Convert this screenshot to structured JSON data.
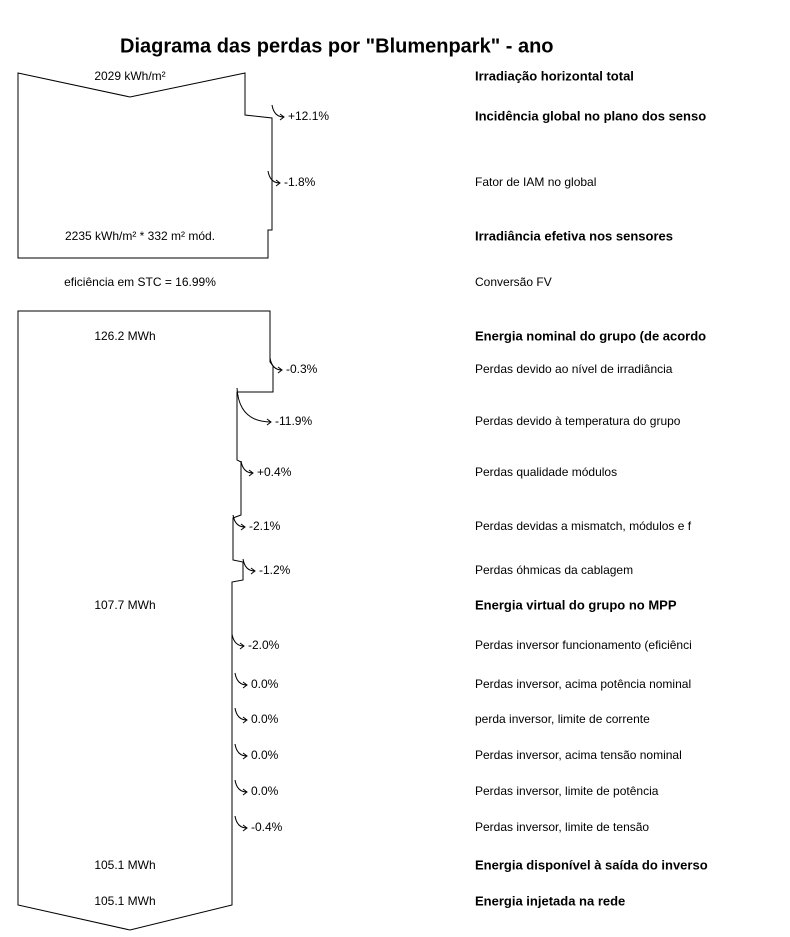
{
  "title": "Diagrama das perdas por \"Blumenpark\"  -  ano",
  "rows": [
    {
      "left": "2029 kWh/m²",
      "label": "Irradiação horizontal total"
    },
    {
      "loss": "+12.1%",
      "label": "Incidência global no plano dos senso"
    },
    {
      "loss": "-1.8%",
      "label": "Fator de IAM no global"
    },
    {
      "left": "2235 kWh/m² * 332 m² mód.",
      "label": "Irradiância efetiva nos sensores"
    },
    {
      "left": "eficiência em STC = 16.99%",
      "label": "Conversão FV"
    },
    {
      "left": "126.2 MWh",
      "label": "Energia nominal do grupo (de acordo"
    },
    {
      "loss": "-0.3%",
      "label": "Perdas devido ao nível de irradiância"
    },
    {
      "loss": "-11.9%",
      "label": "Perdas devido à temperatura do grupo"
    },
    {
      "loss": "+0.4%",
      "label": "Perdas qualidade módulos"
    },
    {
      "loss": "-2.1%",
      "label": "Perdas devidas a mismatch, módulos e f"
    },
    {
      "loss": "-1.2%",
      "label": "Perdas óhmicas da cablagem"
    },
    {
      "left": "107.7 MWh",
      "label": "Energia virtual do grupo no MPP"
    },
    {
      "loss": "-2.0%",
      "label": "Perdas inversor funcionamento (eficiênci"
    },
    {
      "loss": "0.0%",
      "label": "Perdas inversor, acima potência nominal"
    },
    {
      "loss": "0.0%",
      "label": "perda inversor, limite de corrente"
    },
    {
      "loss": "0.0%",
      "label": "Perdas inversor, acima tensão nominal"
    },
    {
      "loss": "0.0%",
      "label": "Perdas inversor, limite de potência"
    },
    {
      "loss": "-0.4%",
      "label": "Perdas inversor, limite de tensão"
    },
    {
      "left": "105.1 MWh",
      "label": "Energia disponível à saída do inverso"
    },
    {
      "left": "105.1 MWh",
      "label": "Energia injetada na rede"
    }
  ]
}
